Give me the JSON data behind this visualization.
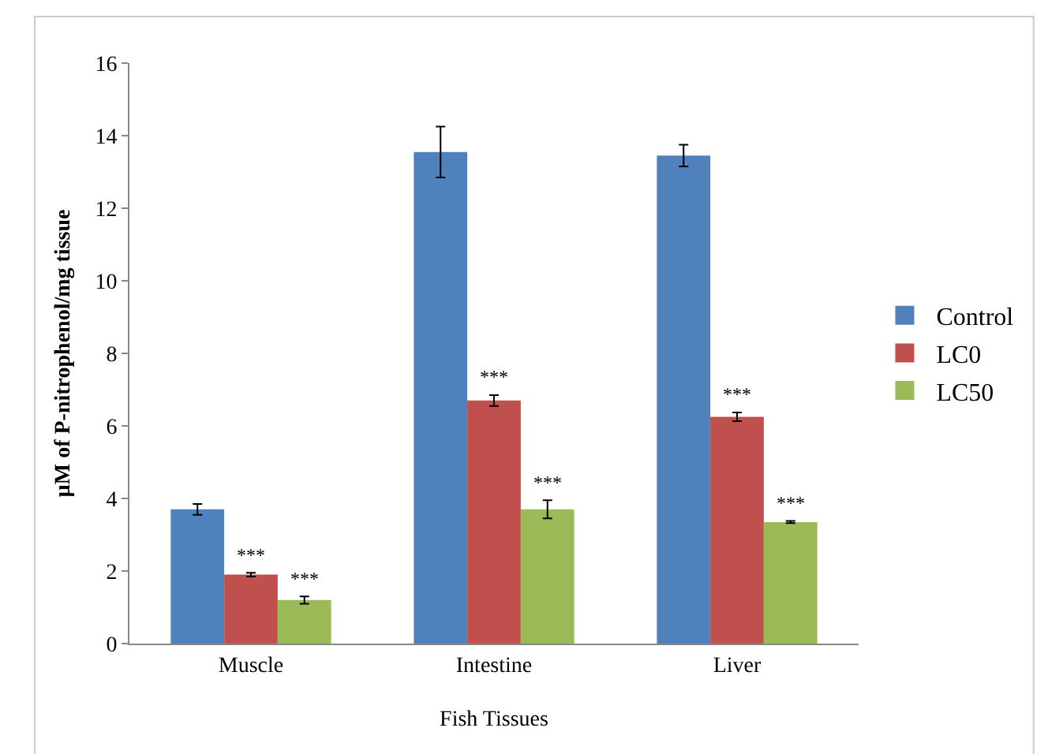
{
  "chart_data": {
    "type": "bar",
    "xlabel": "Fish Tissues",
    "ylabel": "µM of P-nitrophenol/mg tissue",
    "categories": [
      "Muscle",
      "Intestine",
      "Liver"
    ],
    "series": [
      {
        "name": "Control",
        "color": "#4f81bd",
        "values": [
          3.7,
          13.55,
          13.45
        ],
        "errors": [
          0.15,
          0.7,
          0.3
        ]
      },
      {
        "name": "LC0",
        "color": "#c0504d",
        "values": [
          1.9,
          6.7,
          6.25
        ],
        "errors": [
          0.05,
          0.15,
          0.12
        ],
        "value_labels": [
          "***",
          "***",
          "***"
        ]
      },
      {
        "name": "LC50",
        "color": "#9bbb59",
        "values": [
          1.2,
          3.7,
          3.35
        ],
        "errors": [
          0.1,
          0.25,
          0.03
        ],
        "value_labels": [
          "***",
          "***",
          "***"
        ]
      }
    ],
    "ylim": [
      0,
      16
    ],
    "yticks": [
      0,
      2,
      4,
      6,
      8,
      10,
      12,
      14,
      16
    ],
    "grid": false,
    "legend": "right"
  }
}
